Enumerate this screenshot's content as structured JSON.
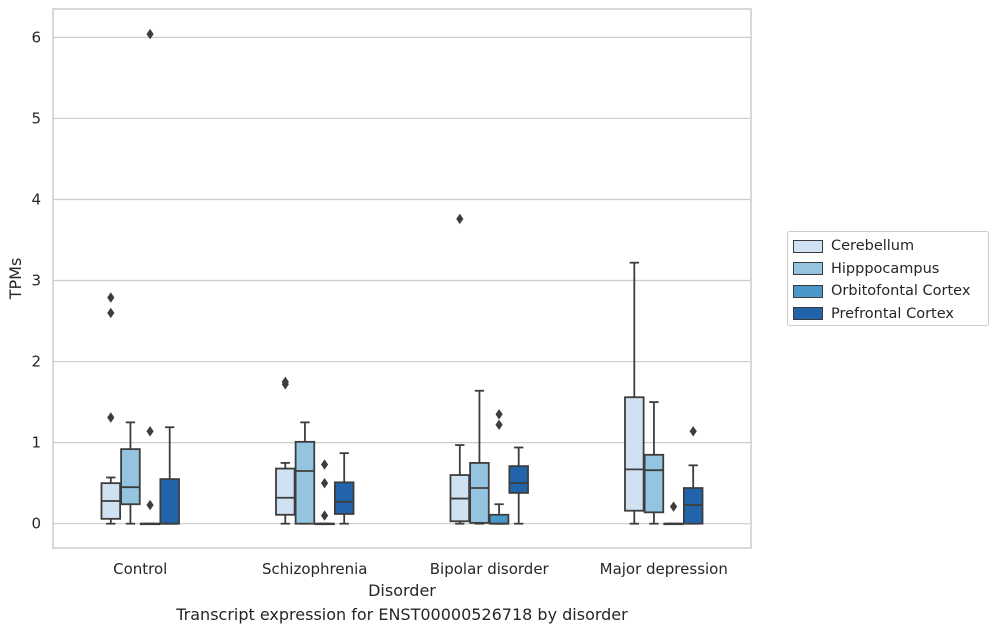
{
  "chart_data": {
    "type": "box",
    "title": "",
    "caption": "Transcript expression for ENST00000526718 by disorder",
    "xlabel": "Disorder",
    "ylabel": "TPMs",
    "ylim": [
      -0.3,
      6.35
    ],
    "yticks": [
      0,
      1,
      2,
      3,
      4,
      5,
      6
    ],
    "grid": true,
    "legend_position": "right",
    "categories": [
      "Control",
      "Schizophrenia",
      "Bipolar disorder",
      "Major depression"
    ],
    "series": [
      {
        "name": "Cerebellum",
        "color": "#d0e1f2",
        "boxes": [
          {
            "whislo": 0.0,
            "q1": 0.06,
            "med": 0.28,
            "q3": 0.5,
            "whishi": 0.57,
            "fliers": [
              1.31,
              2.6,
              2.79
            ]
          },
          {
            "whislo": 0.0,
            "q1": 0.11,
            "med": 0.32,
            "q3": 0.68,
            "whishi": 0.75,
            "fliers": [
              1.72,
              1.75
            ]
          },
          {
            "whislo": 0.0,
            "q1": 0.03,
            "med": 0.31,
            "q3": 0.6,
            "whishi": 0.97,
            "fliers": [
              3.76
            ]
          },
          {
            "whislo": 0.0,
            "q1": 0.16,
            "med": 0.67,
            "q3": 1.56,
            "whishi": 3.22,
            "fliers": []
          }
        ]
      },
      {
        "name": "Hipppocampus",
        "color": "#94c4df",
        "boxes": [
          {
            "whislo": 0.0,
            "q1": 0.24,
            "med": 0.45,
            "q3": 0.92,
            "whishi": 1.25,
            "fliers": []
          },
          {
            "whislo": 0.0,
            "q1": 0.0,
            "med": 0.65,
            "q3": 1.01,
            "whishi": 1.25,
            "fliers": []
          },
          {
            "whislo": 0.0,
            "q1": 0.01,
            "med": 0.44,
            "q3": 0.75,
            "whishi": 1.64,
            "fliers": []
          },
          {
            "whislo": 0.0,
            "q1": 0.14,
            "med": 0.66,
            "q3": 0.85,
            "whishi": 1.5,
            "fliers": []
          }
        ]
      },
      {
        "name": "Orbitofontal Cortex",
        "color": "#4a98c9",
        "boxes": [
          {
            "whislo": 0.0,
            "q1": 0.0,
            "med": 0.0,
            "q3": 0.0,
            "whishi": 0.0,
            "fliers": [
              0.23,
              1.14,
              6.04
            ]
          },
          {
            "whislo": 0.0,
            "q1": 0.0,
            "med": 0.0,
            "q3": 0.0,
            "whishi": 0.0,
            "fliers": [
              0.1,
              0.5,
              0.73
            ]
          },
          {
            "whislo": 0.0,
            "q1": 0.0,
            "med": 0.0,
            "q3": 0.11,
            "whishi": 0.24,
            "fliers": [
              1.22,
              1.35
            ]
          },
          {
            "whislo": 0.0,
            "q1": 0.0,
            "med": 0.0,
            "q3": 0.0,
            "whishi": 0.0,
            "fliers": [
              0.21
            ]
          }
        ]
      },
      {
        "name": "Prefrontal Cortex",
        "color": "#2164ab",
        "boxes": [
          {
            "whislo": 0.0,
            "q1": 0.0,
            "med": 0.0,
            "q3": 0.55,
            "whishi": 1.19,
            "fliers": []
          },
          {
            "whislo": 0.0,
            "q1": 0.12,
            "med": 0.27,
            "q3": 0.51,
            "whishi": 0.87,
            "fliers": []
          },
          {
            "whislo": 0.0,
            "q1": 0.38,
            "med": 0.5,
            "q3": 0.71,
            "whishi": 0.94,
            "fliers": []
          },
          {
            "whislo": 0.0,
            "q1": 0.0,
            "med": 0.23,
            "q3": 0.44,
            "whishi": 0.72,
            "fliers": [
              1.14
            ]
          }
        ]
      }
    ]
  }
}
